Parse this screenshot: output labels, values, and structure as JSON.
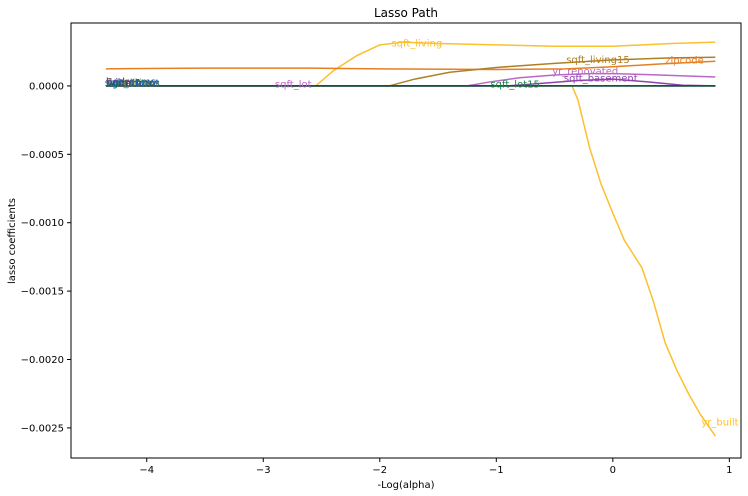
{
  "chart_data": {
    "type": "line",
    "title": "Lasso Path",
    "xlabel": "-Log(alpha)",
    "ylabel": "lasso coefficients",
    "xlim": [
      -4.65,
      1.1
    ],
    "ylim": [
      -0.00272,
      0.00046
    ],
    "xticks": [
      -4,
      -3,
      -2,
      -1,
      0,
      1
    ],
    "xtick_labels": [
      "−4",
      "−3",
      "−2",
      "−1",
      "0",
      "1"
    ],
    "yticks": [
      0.0,
      -0.0005,
      -0.001,
      -0.0015,
      -0.002,
      -0.0025
    ],
    "ytick_labels": [
      "0.0000",
      "−0.0005",
      "−0.0010",
      "−0.0015",
      "−0.0020",
      "−0.0025"
    ],
    "grid": false,
    "series": [
      {
        "name": "sqft_living",
        "color": "#fbc02d",
        "points": [
          [
            -4.35,
            0
          ],
          [
            -2.55,
            0
          ],
          [
            -2.4,
            0.00011
          ],
          [
            -2.2,
            0.00022
          ],
          [
            -2.0,
            0.0003
          ],
          [
            -1.8,
            0.00032
          ],
          [
            -1.5,
            0.00031
          ],
          [
            -1.0,
            0.0003
          ],
          [
            -0.5,
            0.00029
          ],
          [
            0.0,
            0.00029
          ],
          [
            0.5,
            0.00031
          ],
          [
            0.88,
            0.00032
          ]
        ],
        "label_at": [
          -1.9,
          0.00031
        ]
      },
      {
        "name": "yr_built",
        "color": "#fbc02d",
        "points": [
          [
            -4.35,
            0
          ],
          [
            -0.35,
            0
          ],
          [
            -0.3,
            -0.0001
          ],
          [
            -0.2,
            -0.00045
          ],
          [
            -0.1,
            -0.00072
          ],
          [
            0.0,
            -0.00093
          ],
          [
            0.1,
            -0.00113
          ],
          [
            0.25,
            -0.00133
          ],
          [
            0.35,
            -0.00158
          ],
          [
            0.45,
            -0.00188
          ],
          [
            0.55,
            -0.00208
          ],
          [
            0.65,
            -0.00225
          ],
          [
            0.75,
            -0.0024
          ],
          [
            0.88,
            -0.00256
          ]
        ],
        "label_at": [
          0.76,
          -0.00246
        ]
      },
      {
        "name": "zipcode",
        "color": "#e67e22",
        "points": [
          [
            -4.35,
            0.000125
          ],
          [
            -3.5,
            0.00013
          ],
          [
            -2.6,
            0.00013
          ],
          [
            -2.0,
            0.000125
          ],
          [
            -1.0,
            0.00012
          ],
          [
            -0.4,
            0.000125
          ],
          [
            0.0,
            0.00014
          ],
          [
            0.4,
            0.00016
          ],
          [
            0.88,
            0.00018
          ]
        ],
        "label_at": [
          0.45,
          0.000185
        ]
      },
      {
        "name": "sqft_living15",
        "color": "#b07f25",
        "points": [
          [
            -4.35,
            0
          ],
          [
            -1.92,
            0
          ],
          [
            -1.7,
            5e-05
          ],
          [
            -1.4,
            0.0001
          ],
          [
            -1.0,
            0.000135
          ],
          [
            -0.5,
            0.000165
          ],
          [
            0.0,
            0.00019
          ],
          [
            0.5,
            0.000205
          ],
          [
            0.88,
            0.00021
          ]
        ],
        "label_at": [
          -0.4,
          0.00019
        ]
      },
      {
        "name": "yr_renovated",
        "color": "#ba68c8",
        "points": [
          [
            -4.35,
            0
          ],
          [
            -1.25,
            0
          ],
          [
            -1.05,
            3e-05
          ],
          [
            -0.8,
            6e-05
          ],
          [
            -0.5,
            8e-05
          ],
          [
            -0.2,
            9e-05
          ],
          [
            0.0,
            9e-05
          ],
          [
            0.4,
            8e-05
          ],
          [
            0.88,
            6.5e-05
          ]
        ],
        "label_at": [
          -0.52,
          0.000105
        ]
      },
      {
        "name": "sqft_basement",
        "color": "#8e44ad",
        "points": [
          [
            -4.35,
            0
          ],
          [
            -0.9,
            0
          ],
          [
            -0.6,
            2e-05
          ],
          [
            -0.3,
            4e-05
          ],
          [
            0.0,
            5e-05
          ],
          [
            0.3,
            3e-05
          ],
          [
            0.6,
            5e-06
          ],
          [
            0.88,
            0
          ]
        ],
        "label_at": [
          -0.42,
          5.5e-05
        ]
      },
      {
        "name": "sqft_lot",
        "color": "#ba68c8",
        "points": [
          [
            -4.35,
            0
          ],
          [
            0.88,
            0
          ]
        ],
        "label_at": [
          -2.9,
          1.2e-05
        ]
      },
      {
        "name": "sqft_lot15",
        "color": "#1e8449",
        "points": [
          [
            -4.35,
            0
          ],
          [
            0.88,
            0
          ]
        ],
        "label_at": [
          -1.05,
          1e-05
        ]
      },
      {
        "name": "",
        "color": "#0b4f3a",
        "points": [
          [
            -4.35,
            0
          ],
          [
            0.88,
            0
          ]
        ]
      }
    ],
    "clutter_labels": [
      {
        "text": "bedrooms",
        "color": "#1f4e79",
        "at": [
          -4.35,
          1.5e-05
        ]
      },
      {
        "text": "bathrooms",
        "color": "#2e7d32",
        "at": [
          -4.35,
          5e-06
        ]
      },
      {
        "text": "floors",
        "color": "#6d4c41",
        "at": [
          -4.35,
          1e-05
        ]
      },
      {
        "text": "view",
        "color": "#8e24aa",
        "at": [
          -4.32,
          1.2e-05
        ]
      },
      {
        "text": "grade",
        "color": "#00838f",
        "at": [
          -4.3,
          4e-06
        ]
      },
      {
        "text": "condition",
        "color": "#558b2f",
        "at": [
          -4.33,
          8e-06
        ]
      },
      {
        "text": "waterfront",
        "color": "#37474f",
        "at": [
          -4.34,
          2e-06
        ]
      },
      {
        "text": "sqft_above",
        "color": "#1565c0",
        "at": [
          -4.36,
          6e-06
        ]
      }
    ]
  }
}
